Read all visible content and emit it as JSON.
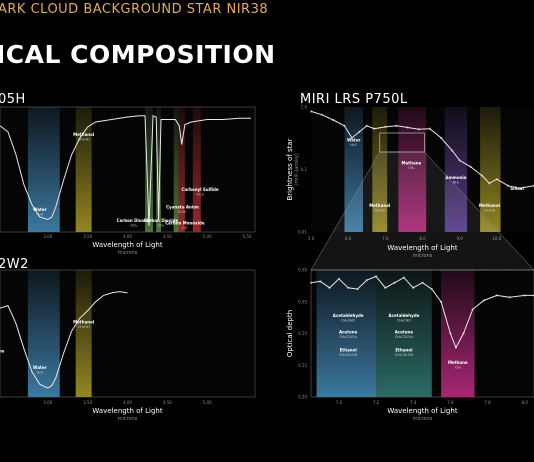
{
  "header": {
    "supertitle": "ARK CLOUD BACKGROUND STAR NIR38",
    "title": "ICAL COMPOSITION"
  },
  "panels": {
    "top_left": {
      "title": "05H"
    },
    "top_right": {
      "title": "MIRI LRS P750L"
    },
    "bottom_left": {
      "title": "2W2"
    }
  },
  "colors": {
    "water": "#3f7ea8",
    "methanol": "#9a8d24",
    "carbon_dioxide": "#4f7a3a",
    "carbon_monoxide": "#a02a2a",
    "methane": "#b0287a",
    "ammonia": "#5b3d8f",
    "acetaldehyde": "#2f6f6a",
    "trace": "#e8e8e8"
  },
  "chart_data": [
    {
      "type": "line",
      "panel": "top_left",
      "title": "05H",
      "xlabel": "Wavelength of Light",
      "xunit": "microns",
      "ylabel": "",
      "xlim": [
        2.4,
        5.6
      ],
      "ylim": [
        0,
        1.0
      ],
      "xticks": [
        "3.00",
        "3.50",
        "4.00",
        "4.50",
        "5.00",
        "5.50"
      ],
      "bands": [
        {
          "from": 2.75,
          "to": 3.15,
          "color": "water"
        },
        {
          "from": 3.35,
          "to": 3.55,
          "color": "methanol"
        },
        {
          "from": 4.22,
          "to": 4.32,
          "color": "carbon_dioxide"
        },
        {
          "from": 4.36,
          "to": 4.42,
          "color": "carbon_dioxide"
        },
        {
          "from": 4.58,
          "to": 4.64,
          "color": "carbon_dioxide"
        },
        {
          "from": 4.64,
          "to": 4.72,
          "color": "carbon_monoxide"
        },
        {
          "from": 4.82,
          "to": 4.92,
          "color": "carbon_monoxide"
        }
      ],
      "labels": [
        {
          "name": "Water",
          "formula": "H₂O",
          "x": 2.9,
          "y": 0.17
        },
        {
          "name": "Methanol",
          "formula": "CH₃OH",
          "x": 3.45,
          "y": 0.77
        },
        {
          "name": "Carbon Dioxide",
          "formula": "CO₂",
          "x": 4.08,
          "y": 0.08
        },
        {
          "name": "Carbon Dioxide",
          "formula": "CO₂",
          "x": 4.42,
          "y": 0.08
        },
        {
          "name": "Cyanate Anion",
          "formula": "OCN⁻",
          "x": 4.69,
          "y": 0.19
        },
        {
          "name": "Carbon Monoxide",
          "formula": "CO",
          "x": 4.72,
          "y": 0.06
        },
        {
          "name": "Carbonyl Sulfide",
          "formula": "OCS",
          "x": 4.91,
          "y": 0.33
        }
      ],
      "x": [
        2.4,
        2.5,
        2.6,
        2.7,
        2.8,
        2.9,
        3.0,
        3.05,
        3.1,
        3.2,
        3.3,
        3.4,
        3.5,
        3.6,
        3.8,
        4.0,
        4.15,
        4.22,
        4.27,
        4.32,
        4.36,
        4.39,
        4.42,
        4.5,
        4.6,
        4.65,
        4.68,
        4.72,
        4.8,
        5.0,
        5.2,
        5.4,
        5.55
      ],
      "y": [
        0.85,
        0.8,
        0.62,
        0.38,
        0.22,
        0.12,
        0.1,
        0.12,
        0.2,
        0.42,
        0.62,
        0.75,
        0.84,
        0.88,
        0.9,
        0.92,
        0.93,
        0.93,
        0.05,
        0.93,
        0.92,
        0.1,
        0.9,
        0.9,
        0.9,
        0.85,
        0.7,
        0.86,
        0.88,
        0.9,
        0.9,
        0.91,
        0.91
      ]
    },
    {
      "type": "line",
      "panel": "top_right",
      "title": "MIRI LRS P750L",
      "xlabel": "Wavelength of Light",
      "xunit": "microns",
      "ylabel": "Brightness of star",
      "yunit": "(milli-Jansky)",
      "xlim": [
        5.0,
        11.0
      ],
      "yscale": "log",
      "ylim": [
        0.01,
        1.0
      ],
      "xticks": [
        "5.0",
        "6.0",
        "7.0",
        "8.0",
        "9.0",
        "10.0"
      ],
      "yticks": [
        "1.0",
        "0.1",
        "0.01"
      ],
      "bands": [
        {
          "from": 5.9,
          "to": 6.4,
          "color": "water"
        },
        {
          "from": 6.65,
          "to": 7.05,
          "color": "methanol"
        },
        {
          "from": 7.35,
          "to": 8.1,
          "color": "methane"
        },
        {
          "from": 8.6,
          "to": 9.2,
          "color": "ammonia"
        },
        {
          "from": 9.55,
          "to": 10.1,
          "color": "methanol"
        }
      ],
      "labels": [
        {
          "name": "Water",
          "formula": "H₂O",
          "x": 6.15,
          "y": 0.28
        },
        {
          "name": "Methanol",
          "formula": "CH₃OH",
          "x": 6.85,
          "y": 0.025
        },
        {
          "name": "Methane",
          "formula": "CH₄",
          "x": 7.7,
          "y": 0.12
        },
        {
          "name": "Ammonia",
          "formula": "NH₃",
          "x": 8.9,
          "y": 0.07
        },
        {
          "name": "Methanol",
          "formula": "CH₃OH",
          "x": 9.8,
          "y": 0.025
        },
        {
          "name": "Silicat",
          "formula": "",
          "x": 10.55,
          "y": 0.047
        }
      ],
      "x": [
        5.0,
        5.3,
        5.6,
        5.9,
        6.1,
        6.3,
        6.5,
        6.7,
        7.0,
        7.3,
        7.6,
        7.9,
        8.2,
        8.5,
        8.8,
        9.0,
        9.3,
        9.6,
        9.8,
        10.0,
        10.3,
        10.6,
        11.0
      ],
      "y": [
        0.85,
        0.75,
        0.62,
        0.5,
        0.32,
        0.4,
        0.5,
        0.45,
        0.48,
        0.5,
        0.47,
        0.44,
        0.45,
        0.32,
        0.2,
        0.14,
        0.11,
        0.08,
        0.06,
        0.07,
        0.055,
        0.05,
        0.055
      ]
    },
    {
      "type": "line",
      "panel": "bottom_left",
      "title": "2W2",
      "xlabel": "Wavelength of Light",
      "xunit": "microns",
      "ylabel": "",
      "xlim": [
        2.4,
        5.6
      ],
      "ylim": [
        0,
        1.0
      ],
      "xticks": [
        "3.00",
        "3.50",
        "4.00",
        "4.50",
        "5.00"
      ],
      "bands": [
        {
          "from": 2.75,
          "to": 3.15,
          "color": "water"
        },
        {
          "from": 3.35,
          "to": 3.55,
          "color": "methanol"
        }
      ],
      "labels": [
        {
          "name": "Water",
          "formula": "H₂O",
          "x": 2.9,
          "y": 0.22
        },
        {
          "name": "Methanol",
          "formula": "CH₃OH",
          "x": 3.45,
          "y": 0.58
        },
        {
          "name": "ne",
          "formula": "",
          "x": 2.42,
          "y": 0.35
        }
      ],
      "x": [
        2.4,
        2.5,
        2.6,
        2.7,
        2.8,
        2.9,
        3.0,
        3.05,
        3.1,
        3.2,
        3.3,
        3.4,
        3.5,
        3.6,
        3.7,
        3.8,
        3.9,
        4.0
      ],
      "y": [
        0.7,
        0.72,
        0.58,
        0.38,
        0.2,
        0.1,
        0.07,
        0.09,
        0.15,
        0.35,
        0.52,
        0.62,
        0.68,
        0.75,
        0.8,
        0.82,
        0.83,
        0.82
      ]
    },
    {
      "type": "line",
      "panel": "bottom_right",
      "title": "",
      "xlabel": "Wavelength of Light",
      "xunit": "microns",
      "ylabel": "Optical depth",
      "xlim": [
        6.85,
        8.05
      ],
      "ylim": [
        0.2,
        0.0
      ],
      "xticks": [
        "7.0",
        "7.2",
        "7.4",
        "7.6",
        "7.8",
        "8.0"
      ],
      "yticks": [
        "0.00",
        "0.05",
        "0.10",
        "0.15",
        "0.20"
      ],
      "bands": [
        {
          "from": 6.88,
          "to": 7.2,
          "color": "water"
        },
        {
          "from": 7.2,
          "to": 7.5,
          "color": "acetaldehyde"
        },
        {
          "from": 7.55,
          "to": 7.73,
          "color": "methane"
        }
      ],
      "labels": [
        {
          "name": "Acetaldehyde",
          "formula": "CH₃CHO",
          "x": 7.05,
          "y": 0.074
        },
        {
          "name": "Acetone",
          "formula": "CH₃COCH₃",
          "x": 7.05,
          "y": 0.1
        },
        {
          "name": "Ethanol",
          "formula": "CH₃CH₂OH",
          "x": 7.05,
          "y": 0.128
        },
        {
          "name": "Acetaldehyde",
          "formula": "CH₃CHO",
          "x": 7.35,
          "y": 0.074
        },
        {
          "name": "Acetone",
          "formula": "CH₃COCH₃",
          "x": 7.35,
          "y": 0.1
        },
        {
          "name": "Ethanol",
          "formula": "CH₃CH₂OH",
          "x": 7.35,
          "y": 0.128
        },
        {
          "name": "Methane",
          "formula": "CH₄",
          "x": 7.64,
          "y": 0.148
        }
      ],
      "x": [
        6.85,
        6.9,
        6.95,
        7.0,
        7.05,
        7.1,
        7.15,
        7.2,
        7.25,
        7.3,
        7.35,
        7.4,
        7.45,
        7.5,
        7.55,
        7.6,
        7.63,
        7.67,
        7.72,
        7.78,
        7.85,
        7.92,
        8.0,
        8.05
      ],
      "y": [
        0.02,
        0.018,
        0.028,
        0.014,
        0.028,
        0.03,
        0.016,
        0.01,
        0.028,
        0.02,
        0.012,
        0.028,
        0.02,
        0.03,
        0.05,
        0.1,
        0.122,
        0.1,
        0.062,
        0.048,
        0.04,
        0.043,
        0.04,
        0.04
      ]
    }
  ]
}
